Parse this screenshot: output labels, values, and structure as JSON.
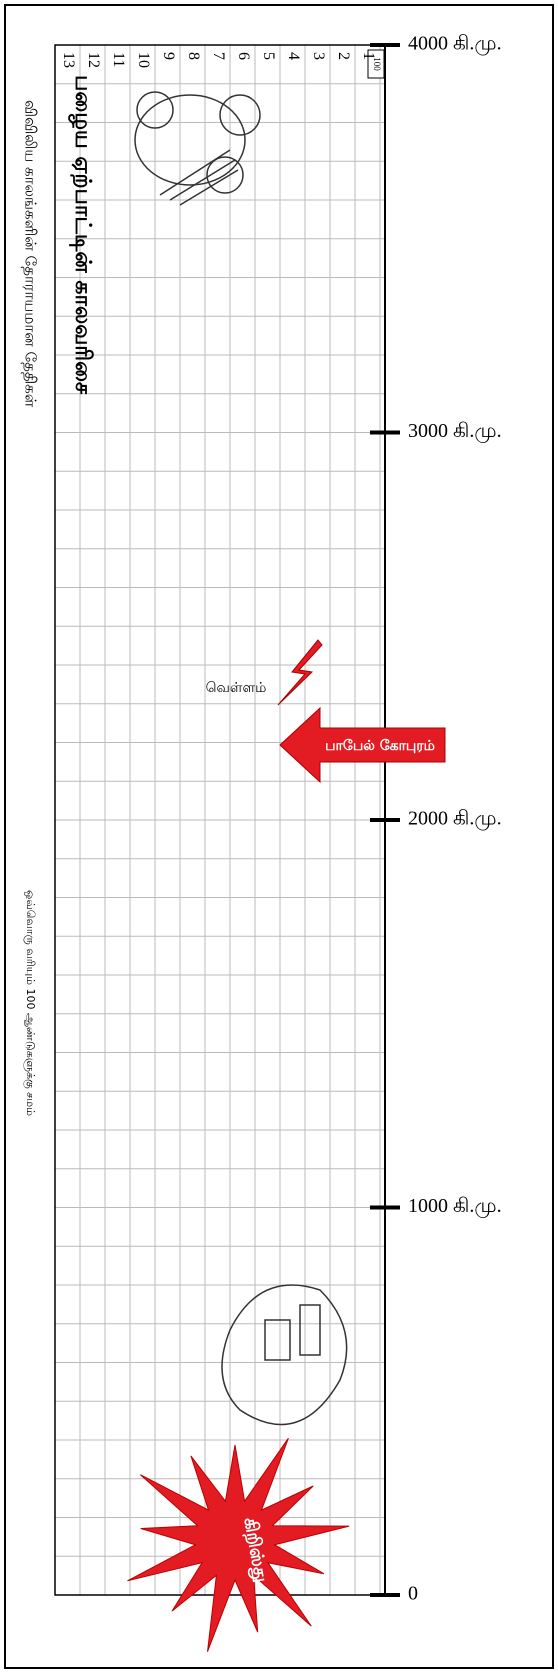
{
  "header": {
    "title": "பழைய ஏற்பாட்டின் காலவரிசை",
    "subtitle": "விவிலிய காலங்களின் தோராயமான தேதிகள்",
    "note": "ஒவ்வொரு வரியும் 100 ஆண்டுகளுக்கு சமம்"
  },
  "scale_box": "100",
  "columns": [
    "1",
    "2",
    "3",
    "4",
    "5",
    "6",
    "7",
    "8",
    "9",
    "10",
    "11",
    "12",
    "13"
  ],
  "timeline": [
    "4000 கி.மு.",
    "3000 கி.மு.",
    "2000 கி.மு.",
    "1000 கி.மு.",
    "0"
  ],
  "events": {
    "flood": "வெள்ளம்",
    "babel": "பாபேல் கோபுரம்",
    "christ": "கிறிஸ்து"
  }
}
